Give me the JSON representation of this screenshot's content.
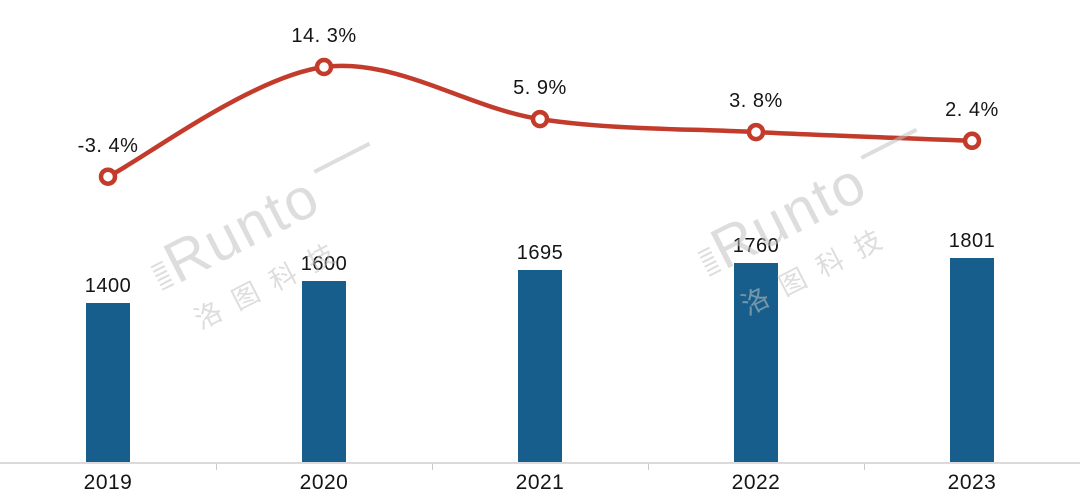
{
  "chart_data": {
    "type": "combo-bar-line",
    "title": "",
    "categories": [
      "2019",
      "2020",
      "2021",
      "2022",
      "2023"
    ],
    "series": [
      {
        "name": "volume-bars",
        "type": "bar",
        "values": [
          1400,
          1600,
          1695,
          1760,
          1801
        ],
        "data_labels": [
          "1400",
          "1600",
          "1695",
          "1760",
          "1801"
        ],
        "color": "#175E8C"
      },
      {
        "name": "growth-rate-line",
        "type": "line",
        "values": [
          -3.4,
          14.3,
          5.9,
          3.8,
          2.4
        ],
        "data_labels": [
          "-3. 4%",
          "14. 3%",
          "5. 9%",
          "3. 8%",
          "2. 4%"
        ],
        "color": "#C23B2B",
        "marker": "hollow-circle"
      }
    ],
    "axis": {
      "x_tick_positions": "between-categories",
      "baseline_color": "#DADADA",
      "grid": false,
      "legend": false,
      "y_axis_labels": "none"
    }
  },
  "watermark": {
    "brand": "Runto",
    "cjk": "洛图科技",
    "occurrences": 2
  }
}
